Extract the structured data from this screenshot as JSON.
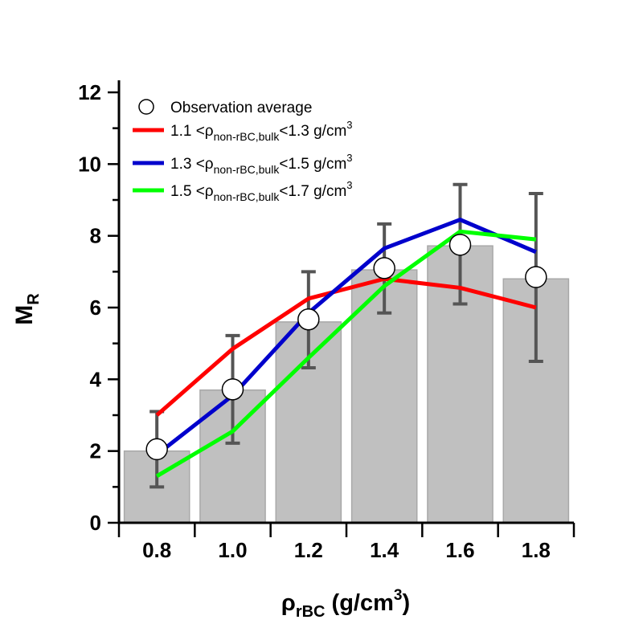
{
  "chart_data": {
    "type": "bar",
    "categories": [
      "0.8",
      "1.0",
      "1.2",
      "1.4",
      "1.6",
      "1.8"
    ],
    "x": [
      0.8,
      1.0,
      1.2,
      1.4,
      1.6,
      1.8
    ],
    "bars": [
      2.0,
      3.7,
      5.6,
      7.05,
      7.72,
      6.8
    ],
    "observation": {
      "values": [
        2.05,
        3.72,
        5.67,
        7.1,
        7.75,
        6.85
      ],
      "err_low": [
        1.0,
        2.22,
        4.32,
        5.85,
        6.1,
        4.5
      ],
      "err_high": [
        3.1,
        5.22,
        7.0,
        8.33,
        9.43,
        9.18
      ]
    },
    "series": [
      {
        "name_pre": "1.1 <ρ",
        "name_sub": "non-rBC,bulk",
        "name_post": "<1.3 g/cm",
        "name_sup": "3",
        "color": "#ff0000",
        "values": [
          3.0,
          4.85,
          6.25,
          6.8,
          6.55,
          6.0
        ]
      },
      {
        "name_pre": "1.3 <ρ",
        "name_sub": "non-rBC,bulk",
        "name_post": "<1.5 g/cm",
        "name_sup": "3",
        "color": "#0000cc",
        "values": [
          1.9,
          3.55,
          5.85,
          7.65,
          8.45,
          7.55
        ]
      },
      {
        "name_pre": "1.5 <ρ",
        "name_sub": "non-rBC,bulk",
        "name_post": "<1.7 g/cm",
        "name_sup": "3",
        "color": "#00ff00",
        "values": [
          1.3,
          2.55,
          4.6,
          6.6,
          8.12,
          7.9
        ]
      }
    ],
    "legend_observation": "Observation average",
    "ylim": [
      0,
      12
    ],
    "yticks": [
      "0",
      "2",
      "4",
      "6",
      "8",
      "10",
      "12"
    ],
    "ylabel_main": "M",
    "ylabel_sub": "R",
    "xlabel_main": "ρ",
    "xlabel_sub": "rBC",
    "xlabel_post": " (g/cm",
    "xlabel_sup": "3",
    "xlabel_end": ")",
    "legend_position": "top-left",
    "bar_color": "#c0c0c0",
    "errorbar_color": "#555555"
  }
}
